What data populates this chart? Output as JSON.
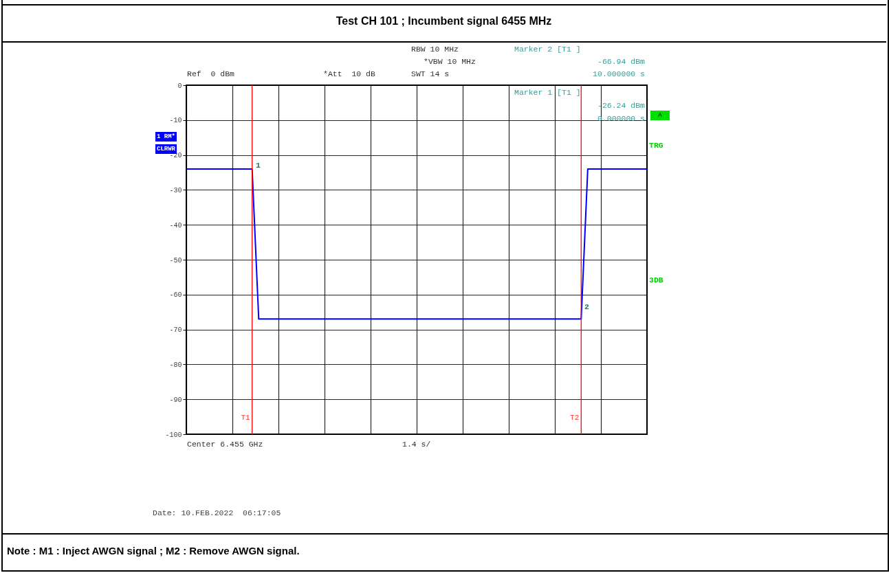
{
  "chart_data": {
    "type": "line",
    "title": "Test CH 101 ; Incumbent signal 6455 MHz",
    "categories": [
      null,
      null,
      null,
      null,
      null,
      null,
      null,
      null,
      null,
      null,
      null,
      null,
      null,
      null,
      null,
      null,
      null,
      null,
      null,
      null,
      null,
      null,
      null,
      null,
      null,
      null,
      null,
      null,
      null,
      null,
      null,
      null,
      null,
      null,
      null,
      null,
      null,
      null,
      null,
      null,
      null,
      null,
      null,
      null,
      null,
      null,
      null,
      null,
      null,
      null,
      null,
      null,
      null,
      null,
      null,
      null,
      null,
      null,
      null,
      null,
      null,
      null,
      null,
      null,
      null,
      null,
      null,
      null,
      null,
      null,
      null
    ],
    "series": [
      {
        "color": "#0000ff",
        "values": [
          -24,
          -24,
          -24,
          -24,
          -24,
          -24,
          -24,
          -24,
          -24,
          -24,
          -24,
          -67,
          -67,
          -67,
          -67,
          -67,
          -67,
          -67,
          -67,
          -67,
          -67,
          -67,
          -67,
          -67,
          -67,
          -67,
          -67,
          -67,
          -67,
          -67,
          -67,
          -67,
          -67,
          -67,
          -67,
          -67,
          -67,
          -67,
          -67,
          -67,
          -67,
          -67,
          -67,
          -67,
          -67,
          -67,
          -67,
          -67,
          -67,
          -67,
          -67,
          -67,
          -67,
          -67,
          -67,
          -67,
          -67,
          -67,
          -67,
          -67,
          -67,
          -24,
          -24,
          -24,
          -24,
          -24,
          -24,
          -24,
          -24,
          -24,
          -24
        ]
      }
    ],
    "ylim": [
      -100,
      0
    ],
    "yticks": [
      0,
      -10,
      -20,
      -30,
      -40,
      -50,
      -60,
      -70,
      -80,
      -90,
      -100
    ],
    "grid": true,
    "tick_labels": "y",
    "annotations": [
      "Ref  0 dBm",
      "*Att  10 dB",
      "RBW 10 MHz",
      "*VBW 10 MHz",
      "SWT 14 s",
      "Marker 2 [T1 ]",
      "-66.94 dBm",
      "10.000000 s",
      "Marker 1 [T1 ]",
      "-26.24 dBm",
      "0.000000 s",
      "1 RM*",
      "CLRWR",
      "A",
      "TRG",
      "3DB",
      "Center 6.455 GHz",
      "1.4 s/",
      "Date: 10.FEB.2022  06:17:05",
      "Note : M1 : Inject AWGN signal ; M2 : Remove AWGN signal.",
      "1",
      "2",
      "T1",
      "T2"
    ]
  }
}
